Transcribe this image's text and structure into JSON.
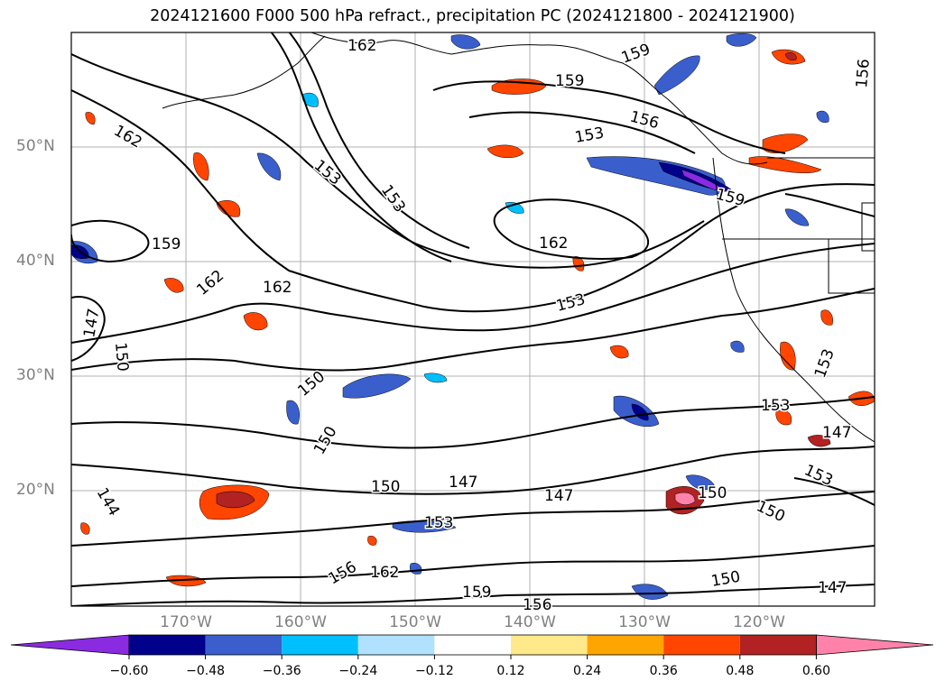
{
  "title": "2024121600 F000 500 hPa refract., precipitation PC (2024121800 - 2024121900)",
  "lat_labels": [
    "50°N",
    "40°N",
    "30°N",
    "20°N"
  ],
  "lon_labels": [
    "170°W",
    "160°W",
    "150°W",
    "140°W",
    "130°W",
    "120°W"
  ],
  "contour_labels": [
    "162",
    "162",
    "159",
    "156",
    "153",
    "159",
    "156",
    "162",
    "153",
    "159",
    "162",
    "147",
    "150",
    "162",
    "159",
    "153",
    "150",
    "153",
    "150",
    "147",
    "150",
    "144",
    "147",
    "147",
    "150",
    "153",
    "153",
    "153",
    "150",
    "162",
    "156",
    "159",
    "150",
    "147",
    "156",
    "153"
  ],
  "colorbar": {
    "ticks": [
      "−0.60",
      "−0.48",
      "−0.36",
      "−0.24",
      "−0.12",
      "0.12",
      "0.24",
      "0.36",
      "0.48",
      "0.60"
    ],
    "colors": [
      "#8a2be2",
      "#00008b",
      "#3a5fcd",
      "#00bfff",
      "#b0e2ff",
      "#ffffff",
      "#ffe98a",
      "#ffa500",
      "#ff4500",
      "#b22222",
      "#ff82ab"
    ]
  }
}
